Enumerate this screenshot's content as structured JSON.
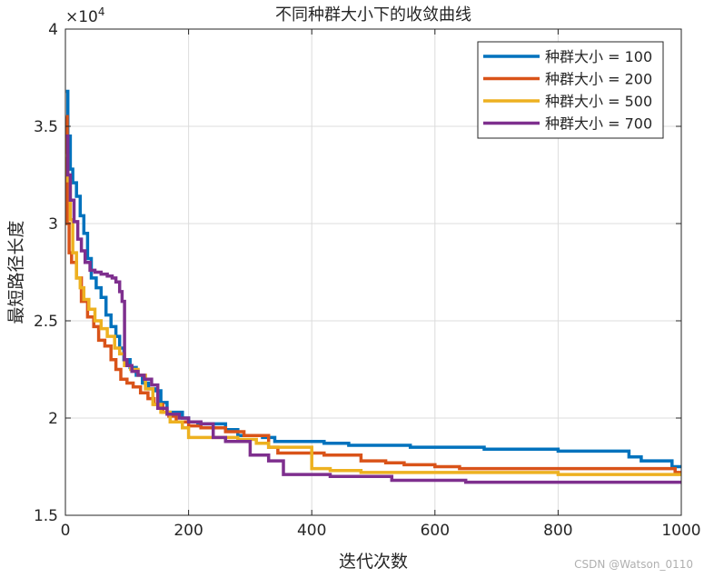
{
  "chart_data": {
    "type": "line",
    "title": "不同种群大小下的收敛曲线",
    "xlabel": "迭代次数",
    "ylabel": "最短路径长度",
    "y_exponent_label": "×10",
    "y_exponent_power": "4",
    "xlim": [
      0,
      1000
    ],
    "ylim": [
      1.5,
      4
    ],
    "xticks": [
      0,
      200,
      400,
      600,
      800,
      1000
    ],
    "yticks": [
      1.5,
      2,
      2.5,
      3,
      3.5,
      4
    ],
    "grid": true,
    "legend_position": "top-right",
    "series": [
      {
        "name": "种群大小 = 100",
        "color": "#0072BD",
        "points": [
          [
            1,
            3.68
          ],
          [
            4,
            3.45
          ],
          [
            8,
            3.28
          ],
          [
            12,
            3.21
          ],
          [
            18,
            3.14
          ],
          [
            24,
            3.04
          ],
          [
            30,
            2.95
          ],
          [
            36,
            2.82
          ],
          [
            42,
            2.72
          ],
          [
            50,
            2.67
          ],
          [
            58,
            2.62
          ],
          [
            66,
            2.53
          ],
          [
            74,
            2.47
          ],
          [
            82,
            2.42
          ],
          [
            88,
            2.36
          ],
          [
            95,
            2.3
          ],
          [
            105,
            2.26
          ],
          [
            115,
            2.22
          ],
          [
            125,
            2.18
          ],
          [
            135,
            2.15
          ],
          [
            145,
            2.14
          ],
          [
            155,
            2.08
          ],
          [
            165,
            2.03
          ],
          [
            190,
            2.0
          ],
          [
            200,
            1.98
          ],
          [
            215,
            1.97
          ],
          [
            240,
            1.97
          ],
          [
            260,
            1.94
          ],
          [
            280,
            1.91
          ],
          [
            320,
            1.9
          ],
          [
            340,
            1.88
          ],
          [
            360,
            1.88
          ],
          [
            380,
            1.88
          ],
          [
            420,
            1.87
          ],
          [
            460,
            1.86
          ],
          [
            520,
            1.86
          ],
          [
            560,
            1.85
          ],
          [
            640,
            1.85
          ],
          [
            680,
            1.84
          ],
          [
            760,
            1.84
          ],
          [
            800,
            1.83
          ],
          [
            900,
            1.83
          ],
          [
            915,
            1.8
          ],
          [
            935,
            1.78
          ],
          [
            970,
            1.78
          ],
          [
            985,
            1.75
          ],
          [
            1000,
            1.75
          ]
        ]
      },
      {
        "name": "种群大小 = 200",
        "color": "#D95319",
        "points": [
          [
            1,
            3.55
          ],
          [
            3,
            3.0
          ],
          [
            6,
            2.85
          ],
          [
            10,
            2.8
          ],
          [
            18,
            2.72
          ],
          [
            26,
            2.6
          ],
          [
            36,
            2.52
          ],
          [
            46,
            2.47
          ],
          [
            54,
            2.4
          ],
          [
            64,
            2.37
          ],
          [
            74,
            2.3
          ],
          [
            82,
            2.25
          ],
          [
            90,
            2.2
          ],
          [
            100,
            2.18
          ],
          [
            110,
            2.16
          ],
          [
            122,
            2.13
          ],
          [
            134,
            2.1
          ],
          [
            144,
            2.07
          ],
          [
            158,
            2.03
          ],
          [
            168,
            2.01
          ],
          [
            180,
            1.98
          ],
          [
            200,
            1.96
          ],
          [
            220,
            1.95
          ],
          [
            240,
            1.95
          ],
          [
            260,
            1.93
          ],
          [
            290,
            1.91
          ],
          [
            330,
            1.85
          ],
          [
            345,
            1.82
          ],
          [
            380,
            1.82
          ],
          [
            420,
            1.81
          ],
          [
            480,
            1.78
          ],
          [
            520,
            1.77
          ],
          [
            550,
            1.76
          ],
          [
            600,
            1.75
          ],
          [
            640,
            1.74
          ],
          [
            700,
            1.74
          ],
          [
            750,
            1.74
          ],
          [
            800,
            1.74
          ],
          [
            850,
            1.74
          ],
          [
            950,
            1.74
          ],
          [
            990,
            1.72
          ],
          [
            1000,
            1.72
          ]
        ]
      },
      {
        "name": "种群大小 = 500",
        "color": "#EDB120",
        "points": [
          [
            1,
            3.35
          ],
          [
            4,
            3.22
          ],
          [
            8,
            3.02
          ],
          [
            12,
            2.85
          ],
          [
            18,
            2.72
          ],
          [
            24,
            2.67
          ],
          [
            30,
            2.61
          ],
          [
            38,
            2.56
          ],
          [
            48,
            2.5
          ],
          [
            58,
            2.46
          ],
          [
            68,
            2.42
          ],
          [
            80,
            2.36
          ],
          [
            88,
            2.33
          ],
          [
            96,
            2.27
          ],
          [
            106,
            2.25
          ],
          [
            118,
            2.22
          ],
          [
            130,
            2.15
          ],
          [
            142,
            2.07
          ],
          [
            155,
            2.03
          ],
          [
            170,
            1.98
          ],
          [
            190,
            1.95
          ],
          [
            200,
            1.9
          ],
          [
            230,
            1.9
          ],
          [
            260,
            1.9
          ],
          [
            280,
            1.89
          ],
          [
            310,
            1.87
          ],
          [
            330,
            1.85
          ],
          [
            350,
            1.85
          ],
          [
            400,
            1.74
          ],
          [
            420,
            1.74
          ],
          [
            430,
            1.73
          ],
          [
            480,
            1.72
          ],
          [
            520,
            1.72
          ],
          [
            560,
            1.72
          ],
          [
            600,
            1.72
          ],
          [
            700,
            1.72
          ],
          [
            800,
            1.71
          ],
          [
            880,
            1.71
          ],
          [
            900,
            1.71
          ],
          [
            1000,
            1.71
          ]
        ]
      },
      {
        "name": "种群大小 = 700",
        "color": "#7E2F8E",
        "points": [
          [
            1,
            3.45
          ],
          [
            4,
            3.25
          ],
          [
            8,
            3.12
          ],
          [
            14,
            3.01
          ],
          [
            20,
            2.92
          ],
          [
            26,
            2.86
          ],
          [
            32,
            2.8
          ],
          [
            40,
            2.76
          ],
          [
            48,
            2.75
          ],
          [
            58,
            2.74
          ],
          [
            68,
            2.73
          ],
          [
            76,
            2.72
          ],
          [
            82,
            2.7
          ],
          [
            88,
            2.65
          ],
          [
            92,
            2.6
          ],
          [
            96,
            2.3
          ],
          [
            100,
            2.27
          ],
          [
            108,
            2.24
          ],
          [
            118,
            2.22
          ],
          [
            128,
            2.2
          ],
          [
            140,
            2.17
          ],
          [
            150,
            2.05
          ],
          [
            165,
            2.02
          ],
          [
            185,
            2.0
          ],
          [
            200,
            1.98
          ],
          [
            220,
            1.97
          ],
          [
            240,
            1.9
          ],
          [
            260,
            1.88
          ],
          [
            300,
            1.81
          ],
          [
            330,
            1.78
          ],
          [
            354,
            1.71
          ],
          [
            400,
            1.71
          ],
          [
            430,
            1.7
          ],
          [
            480,
            1.7
          ],
          [
            530,
            1.68
          ],
          [
            580,
            1.68
          ],
          [
            600,
            1.68
          ],
          [
            650,
            1.67
          ],
          [
            700,
            1.67
          ],
          [
            800,
            1.67
          ],
          [
            900,
            1.67
          ],
          [
            1000,
            1.67
          ]
        ]
      }
    ]
  },
  "watermark": "CSDN @Watson_0110"
}
